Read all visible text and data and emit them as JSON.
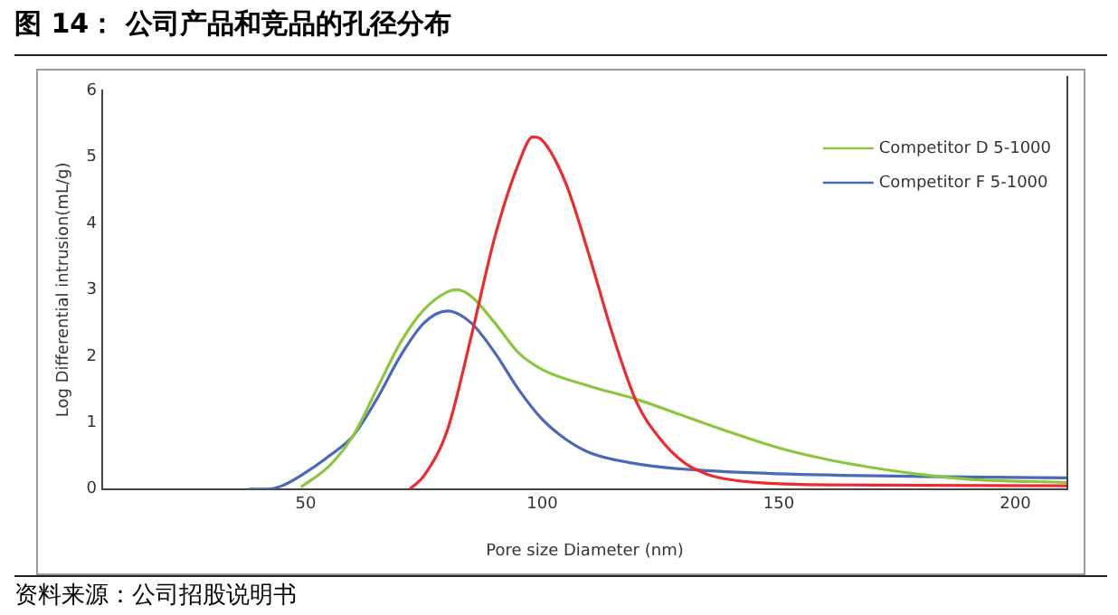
{
  "chart_data": {
    "type": "line",
    "title": "图 14： 公司产品和竞品的孔径分布",
    "xlabel": "Pore size Diameter (nm)",
    "ylabel": "Log Differential intrusion(mL/g)",
    "annotations": [
      "资料来源：公司招股说明书"
    ],
    "xlim": [
      7,
      211
    ],
    "xticks": [
      50,
      100,
      150,
      200
    ],
    "ylim": [
      0,
      6
    ],
    "yticks": [
      0,
      1,
      2,
      3,
      4,
      5,
      6
    ],
    "grid": false,
    "legend": "top right",
    "marker": "none",
    "line_style": "solid",
    "series": [
      {
        "color": "#ee2a2e",
        "x": [
          72,
          75,
          80,
          85,
          90,
          95,
          98,
          100,
          105,
          110,
          115,
          120,
          125,
          130,
          135,
          140,
          150,
          170,
          211
        ],
        "values": [
          0,
          0.2,
          0.9,
          2.3,
          3.8,
          4.9,
          5.3,
          5.25,
          4.6,
          3.5,
          2.3,
          1.3,
          0.75,
          0.4,
          0.22,
          0.14,
          0.08,
          0.06,
          0.05
        ]
      },
      {
        "name": "Competitor D 5-1000",
        "color": "#8cc63f",
        "x": [
          49,
          55,
          60,
          65,
          70,
          75,
          80,
          82,
          85,
          90,
          95,
          100,
          110,
          120,
          130,
          140,
          150,
          160,
          170,
          180,
          190,
          211
        ],
        "values": [
          0.03,
          0.35,
          0.8,
          1.5,
          2.2,
          2.7,
          2.97,
          3,
          2.9,
          2.5,
          2.05,
          1.8,
          1.55,
          1.35,
          1.1,
          0.85,
          0.62,
          0.45,
          0.32,
          0.22,
          0.15,
          0.1
        ]
      },
      {
        "name": "Competitor F 5-1000",
        "color": "#4a68b8",
        "x": [
          38,
          42,
          45,
          50,
          55,
          60,
          65,
          70,
          75,
          80,
          85,
          90,
          95,
          100,
          105,
          110,
          120,
          130,
          150,
          180,
          211
        ],
        "values": [
          0,
          0,
          0.05,
          0.25,
          0.5,
          0.8,
          1.35,
          2,
          2.5,
          2.68,
          2.5,
          2.05,
          1.5,
          1.05,
          0.75,
          0.55,
          0.38,
          0.3,
          0.23,
          0.19,
          0.17
        ]
      }
    ]
  }
}
